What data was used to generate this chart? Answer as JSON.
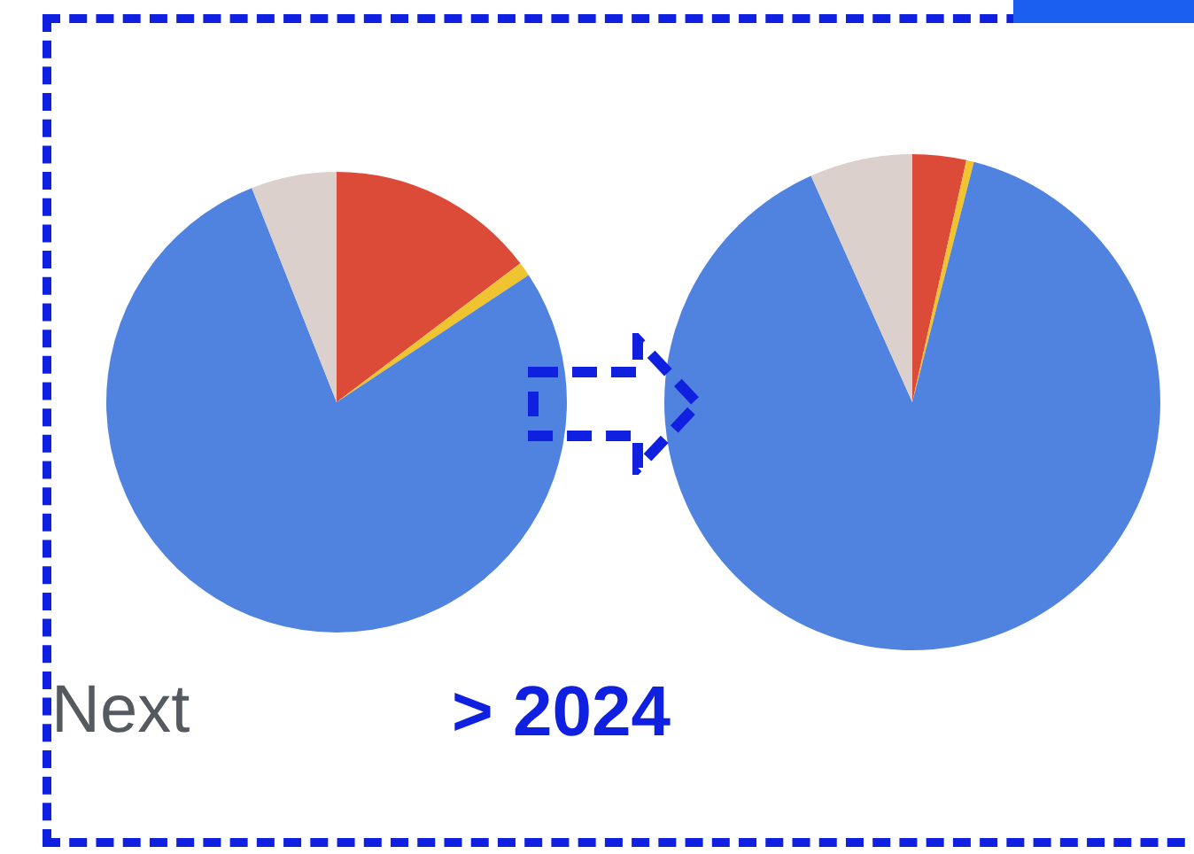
{
  "chart_data": [
    {
      "type": "pie",
      "categories": [
        null,
        null,
        null,
        null
      ],
      "values": [
        14.7,
        1,
        78.3,
        6
      ],
      "colors": [
        "#dc4a38",
        "#f0c430",
        "#5083e0",
        "#dcd0cc"
      ],
      "legend": false,
      "annotations": [
        "Next"
      ]
    },
    {
      "type": "pie",
      "categories": [
        null,
        null,
        null,
        null
      ],
      "values": [
        3.5,
        0.5,
        89.3,
        6.7
      ],
      "colors": [
        "#dc4a38",
        "#f0c430",
        "#5083e0",
        "#dcd0cc"
      ],
      "legend": false,
      "annotations": [
        "> 2024"
      ]
    }
  ]
}
